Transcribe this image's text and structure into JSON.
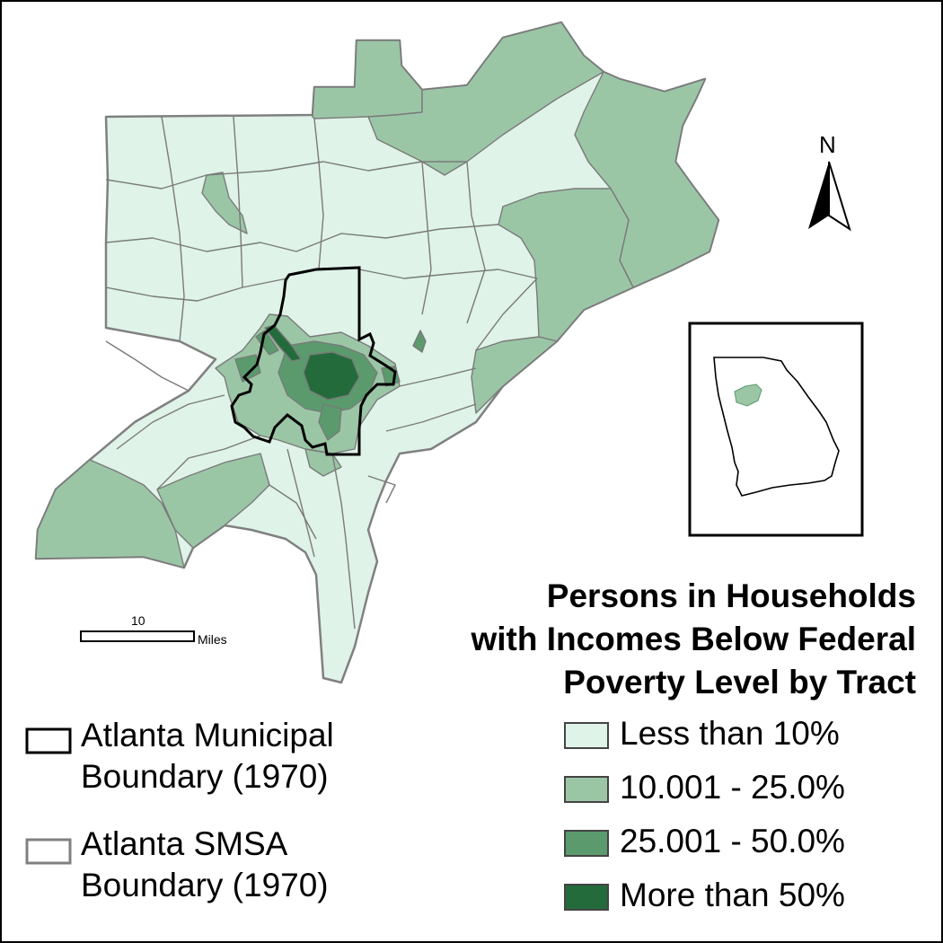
{
  "title": {
    "line1": "Persons in Households",
    "line2": "with Incomes Below Federal",
    "line3": "Poverty Level by Tract"
  },
  "legend": {
    "classes": [
      {
        "label": "Less than 10%",
        "color": "#dff3e8"
      },
      {
        "label": "10.001 - 25.0%",
        "color": "#9bc6a6"
      },
      {
        "label": "25.001 - 50.0%",
        "color": "#5a9a6c"
      },
      {
        "label": "More than 50%",
        "color": "#236b3b"
      }
    ]
  },
  "boundaries": {
    "municipal": {
      "line1": "Atlanta Municipal",
      "line2": "Boundary (1970)",
      "color": "#000000"
    },
    "smsa": {
      "line1": "Atlanta SMSA",
      "line2": "Boundary (1970)",
      "color": "#808080"
    }
  },
  "scale_bar": {
    "value": "10",
    "unit": "Miles"
  },
  "north_arrow": {
    "label": "N"
  },
  "colors": {
    "tract_border": "#7a7a7a",
    "frame": "#000000"
  }
}
